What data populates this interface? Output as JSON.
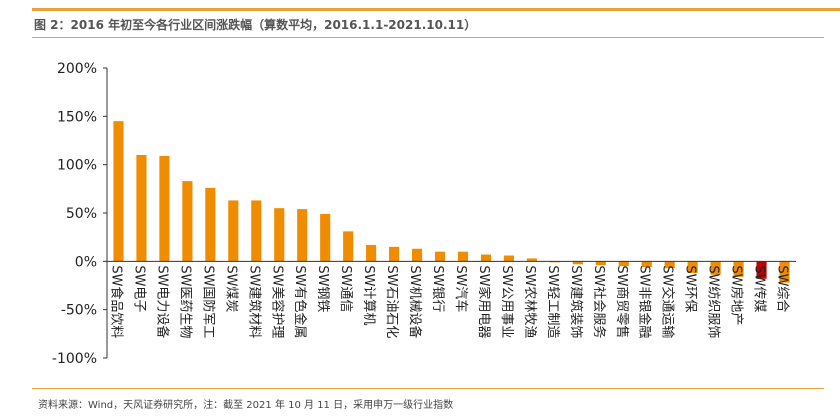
{
  "header": {
    "title": "图 2：2016 年初至今各行业区间涨跌幅（算数平均，2016.1.1-2021.10.11）"
  },
  "footer": {
    "source": "资料来源：Wind，天风证券研究所，注：截至 2021 年 10 月 11 日，采用申万一级行业指数"
  },
  "colors": {
    "bar": "#f08c00",
    "highlight_bar": "#c00000",
    "accent_rule": "#e8a33a"
  },
  "chart_data": {
    "type": "bar",
    "title": "",
    "xlabel": "",
    "ylabel": "",
    "ylim": [
      -1.0,
      2.0
    ],
    "yticks": [
      -1.0,
      -0.5,
      0,
      0.5,
      1.0,
      1.5,
      2.0
    ],
    "ytick_labels": [
      "-100%",
      "-50%",
      "0%",
      "50%",
      "100%",
      "150%",
      "200%"
    ],
    "grid": false,
    "legend": "none",
    "categories": [
      "SW食品饮料",
      "SW电子",
      "SW电力设备",
      "SW医药生物",
      "SW国防军工",
      "SW煤炭",
      "SW建筑材料",
      "SW美容护理",
      "SW有色金属",
      "SW钢铁",
      "SW通信",
      "SW计算机",
      "SW石油石化",
      "SW机械设备",
      "SW银行",
      "SW汽车",
      "SW家用电器",
      "SW公用事业",
      "SW农林牧渔",
      "SW轻工制造",
      "SW建筑装饰",
      "SW社会服务",
      "SW商贸零售",
      "SW非银金融",
      "SW交通运输",
      "SW环保",
      "SW纺织服饰",
      "SW房地产",
      "SW传媒",
      "SW综合"
    ],
    "values": [
      1.45,
      1.1,
      1.09,
      0.83,
      0.76,
      0.63,
      0.63,
      0.55,
      0.54,
      0.49,
      0.31,
      0.17,
      0.15,
      0.13,
      0.1,
      0.1,
      0.07,
      0.06,
      0.03,
      -0.01,
      -0.03,
      -0.04,
      -0.05,
      -0.06,
      -0.07,
      -0.12,
      -0.14,
      -0.16,
      -0.18,
      -0.22
    ],
    "highlight_index": 28
  }
}
